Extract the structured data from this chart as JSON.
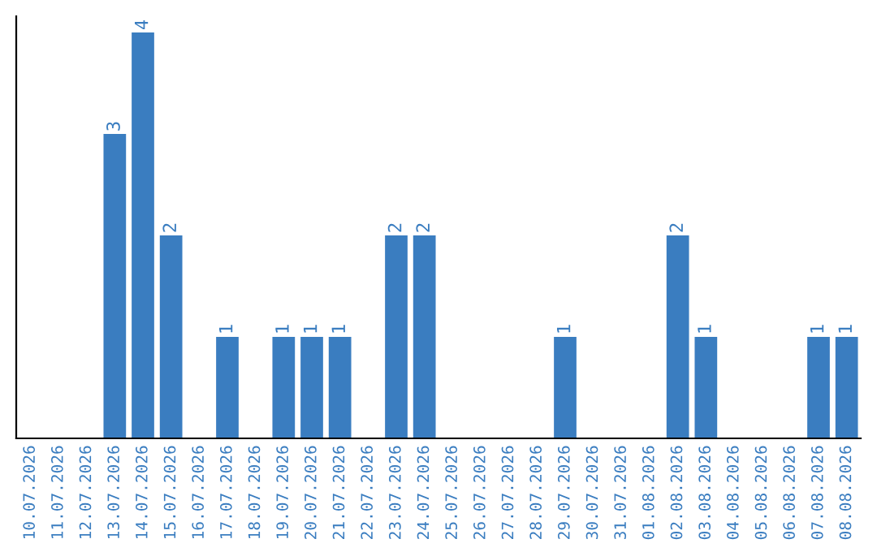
{
  "chart_data": {
    "type": "bar",
    "categories": [
      "10.07.2026",
      "11.07.2026",
      "12.07.2026",
      "13.07.2026",
      "14.07.2026",
      "15.07.2026",
      "16.07.2026",
      "17.07.2026",
      "18.07.2026",
      "19.07.2026",
      "20.07.2026",
      "21.07.2026",
      "22.07.2026",
      "23.07.2026",
      "24.07.2026",
      "25.07.2026",
      "26.07.2026",
      "27.07.2026",
      "28.07.2026",
      "29.07.2026",
      "30.07.2026",
      "31.07.2026",
      "01.08.2026",
      "02.08.2026",
      "03.08.2026",
      "04.08.2026",
      "05.08.2026",
      "06.08.2026",
      "07.08.2026",
      "08.08.2026"
    ],
    "values": [
      0,
      0,
      0,
      3,
      4,
      2,
      0,
      1,
      0,
      1,
      1,
      1,
      0,
      2,
      2,
      0,
      0,
      0,
      0,
      1,
      0,
      0,
      0,
      2,
      1,
      0,
      0,
      0,
      1,
      1
    ],
    "value_labels": [
      null,
      null,
      null,
      "3",
      "4",
      "2",
      null,
      "1",
      null,
      "1",
      "1",
      "1",
      null,
      "2",
      "2",
      null,
      null,
      null,
      null,
      "1",
      null,
      null,
      null,
      "2",
      "1",
      null,
      null,
      null,
      "1",
      "1"
    ],
    "color": "#3a7dc0",
    "tick_labels": "x",
    "grid": false,
    "legend": false
  }
}
